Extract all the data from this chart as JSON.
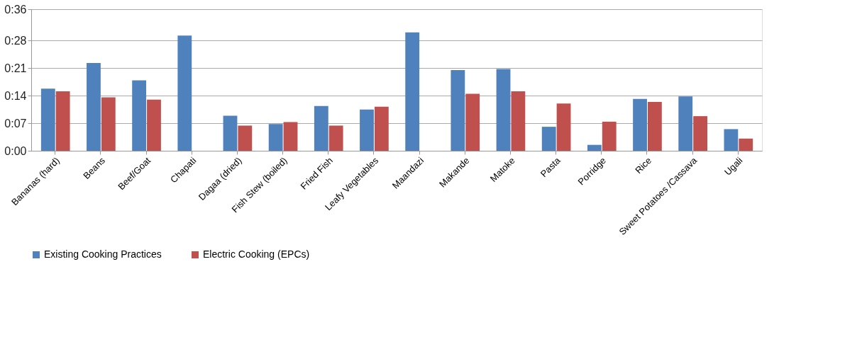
{
  "chart_data": {
    "type": "bar",
    "categories": [
      "Bananas (hard)",
      "Beans",
      "Beef/Goat",
      "Chapati",
      "Dagaa (dried)",
      "Fish Stew (boiled)",
      "Fried Fish",
      "Leafy Vegetables",
      "Maandazi",
      "Makande",
      "Matoke",
      "Pasta",
      "Porridge",
      "Rice",
      "Sweet Potatoes /Cassava",
      "Ugali"
    ],
    "series": [
      {
        "name": "Existing Cooking Practices",
        "color": "#4f81bd",
        "values": [
          15.8,
          22.3,
          17.9,
          29.3,
          8.9,
          6.8,
          11.4,
          10.5,
          30.1,
          20.5,
          20.8,
          6.1,
          1.5,
          13.2,
          13.8,
          5.5
        ]
      },
      {
        "name": "Electric Cooking (EPCs)",
        "color": "#c0504d",
        "values": [
          15.1,
          13.6,
          13.0,
          0,
          6.4,
          7.3,
          6.4,
          11.2,
          0,
          14.5,
          15.1,
          12.0,
          7.4,
          12.4,
          8.8,
          3.1
        ]
      }
    ],
    "ylim": [
      0,
      36
    ],
    "yticks": [
      {
        "value": 0,
        "label": "0:00"
      },
      {
        "value": 7,
        "label": "0:07"
      },
      {
        "value": 14,
        "label": "0:14"
      },
      {
        "value": 21,
        "label": "0:21"
      },
      {
        "value": 28,
        "label": "0:28"
      },
      {
        "value": 36,
        "label": "0:36"
      }
    ],
    "grid": "y",
    "legend": "bottom"
  }
}
